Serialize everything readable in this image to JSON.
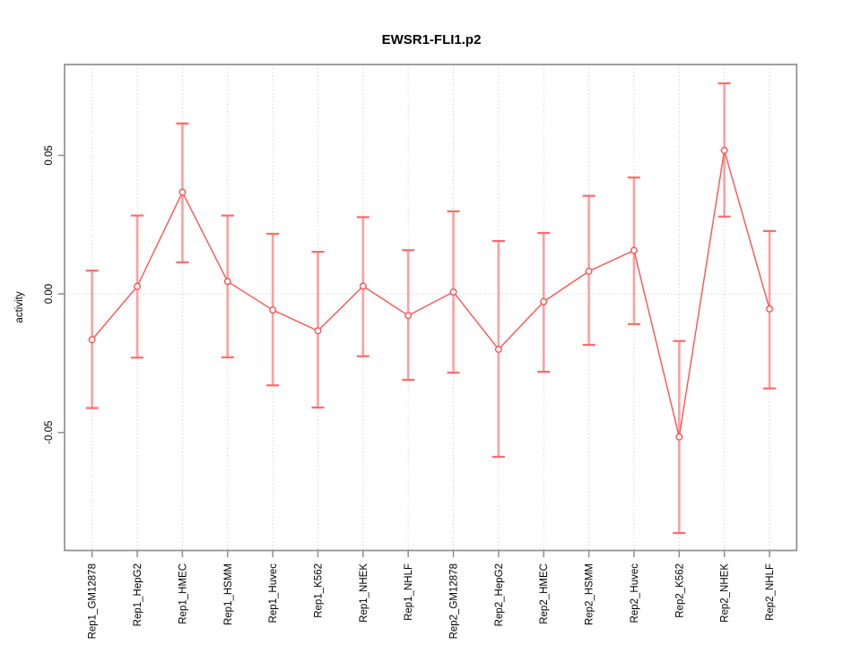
{
  "chart_data": {
    "type": "line",
    "title": "EWSR1-FLI1.p2",
    "xlabel": "",
    "ylabel": "activity",
    "legend": "none",
    "marker": "open-circle",
    "error_bars": true,
    "grid": {
      "vertical_dotted_per_category": true,
      "horizontal_dotted_at_zero": true
    },
    "ylim": [
      -0.0926,
      0.0828
    ],
    "yticks": [
      0.05,
      0.0,
      -0.05
    ],
    "ytick_labels": [
      "0.05",
      "0.00",
      "-0.05"
    ],
    "categories": [
      "Rep1_GM12878",
      "Rep1_HepG2",
      "Rep1_HMEC",
      "Rep1_HSMM",
      "Rep1_Huvec",
      "Rep1_K562",
      "Rep1_NHEK",
      "Rep1_NHLF",
      "Rep2_GM12878",
      "Rep2_HepG2",
      "Rep2_HMEC",
      "Rep2_HSMM",
      "Rep2_Huvec",
      "Rep2_K562",
      "Rep2_NHEK",
      "Rep2_NHLF"
    ],
    "series": [
      {
        "name": "activity",
        "values": [
          -0.0165,
          0.0027,
          0.0367,
          0.0045,
          -0.0058,
          -0.0133,
          0.0028,
          -0.0078,
          0.0007,
          -0.02,
          -0.0028,
          0.0082,
          0.0157,
          -0.0516,
          0.0518,
          -0.0054
        ],
        "upper": [
          0.0084,
          0.0283,
          0.0615,
          0.0283,
          0.0217,
          0.0152,
          0.0277,
          0.0158,
          0.0298,
          0.0191,
          0.022,
          0.0354,
          0.042,
          -0.017,
          0.076,
          0.0227
        ],
        "lower": [
          -0.0412,
          -0.023,
          0.0114,
          -0.0229,
          -0.033,
          -0.041,
          -0.0225,
          -0.031,
          -0.0284,
          -0.0588,
          -0.0281,
          -0.0184,
          -0.0109,
          -0.0863,
          0.0279,
          -0.0341
        ]
      }
    ],
    "colors": {
      "line": "#ff5252",
      "marker_stroke": "#ff5252",
      "error_bar": "#ff9e9e",
      "error_cap": "#ff6b6b",
      "frame": "#8f8f8f",
      "grid": "#d6d6d6",
      "text": "#000000",
      "background": "#ffffff"
    }
  }
}
